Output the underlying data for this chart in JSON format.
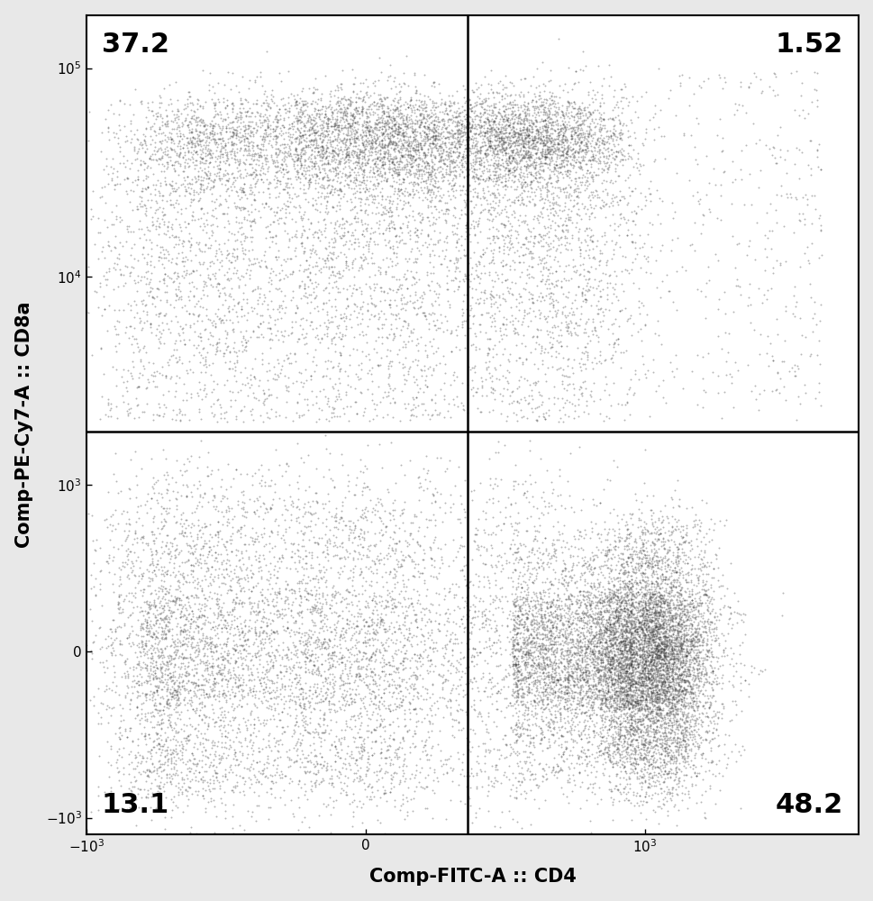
{
  "xlabel": "Comp-FITC-A :: CD4",
  "ylabel": "Comp-PE-Cy7-A :: CD8a",
  "quadrant_labels": {
    "UL": "37.2",
    "UR": "1.52",
    "LL": "13.1",
    "LR": "48.2"
  },
  "quadrant_label_fontsize": 22,
  "axis_label_fontsize": 15,
  "tick_label_fontsize": 11,
  "background_color": "#e8e8e8",
  "plot_bg_color": "#ffffff",
  "dot_color": "#333333",
  "dot_alpha": 0.35,
  "dot_size": 2.0,
  "gate_x": 200,
  "gate_y": 1800,
  "x_linthresh": 150,
  "y_linthresh": 300,
  "x_lim": [
    -600,
    7000
  ],
  "y_lim": [
    -1200,
    180000
  ]
}
